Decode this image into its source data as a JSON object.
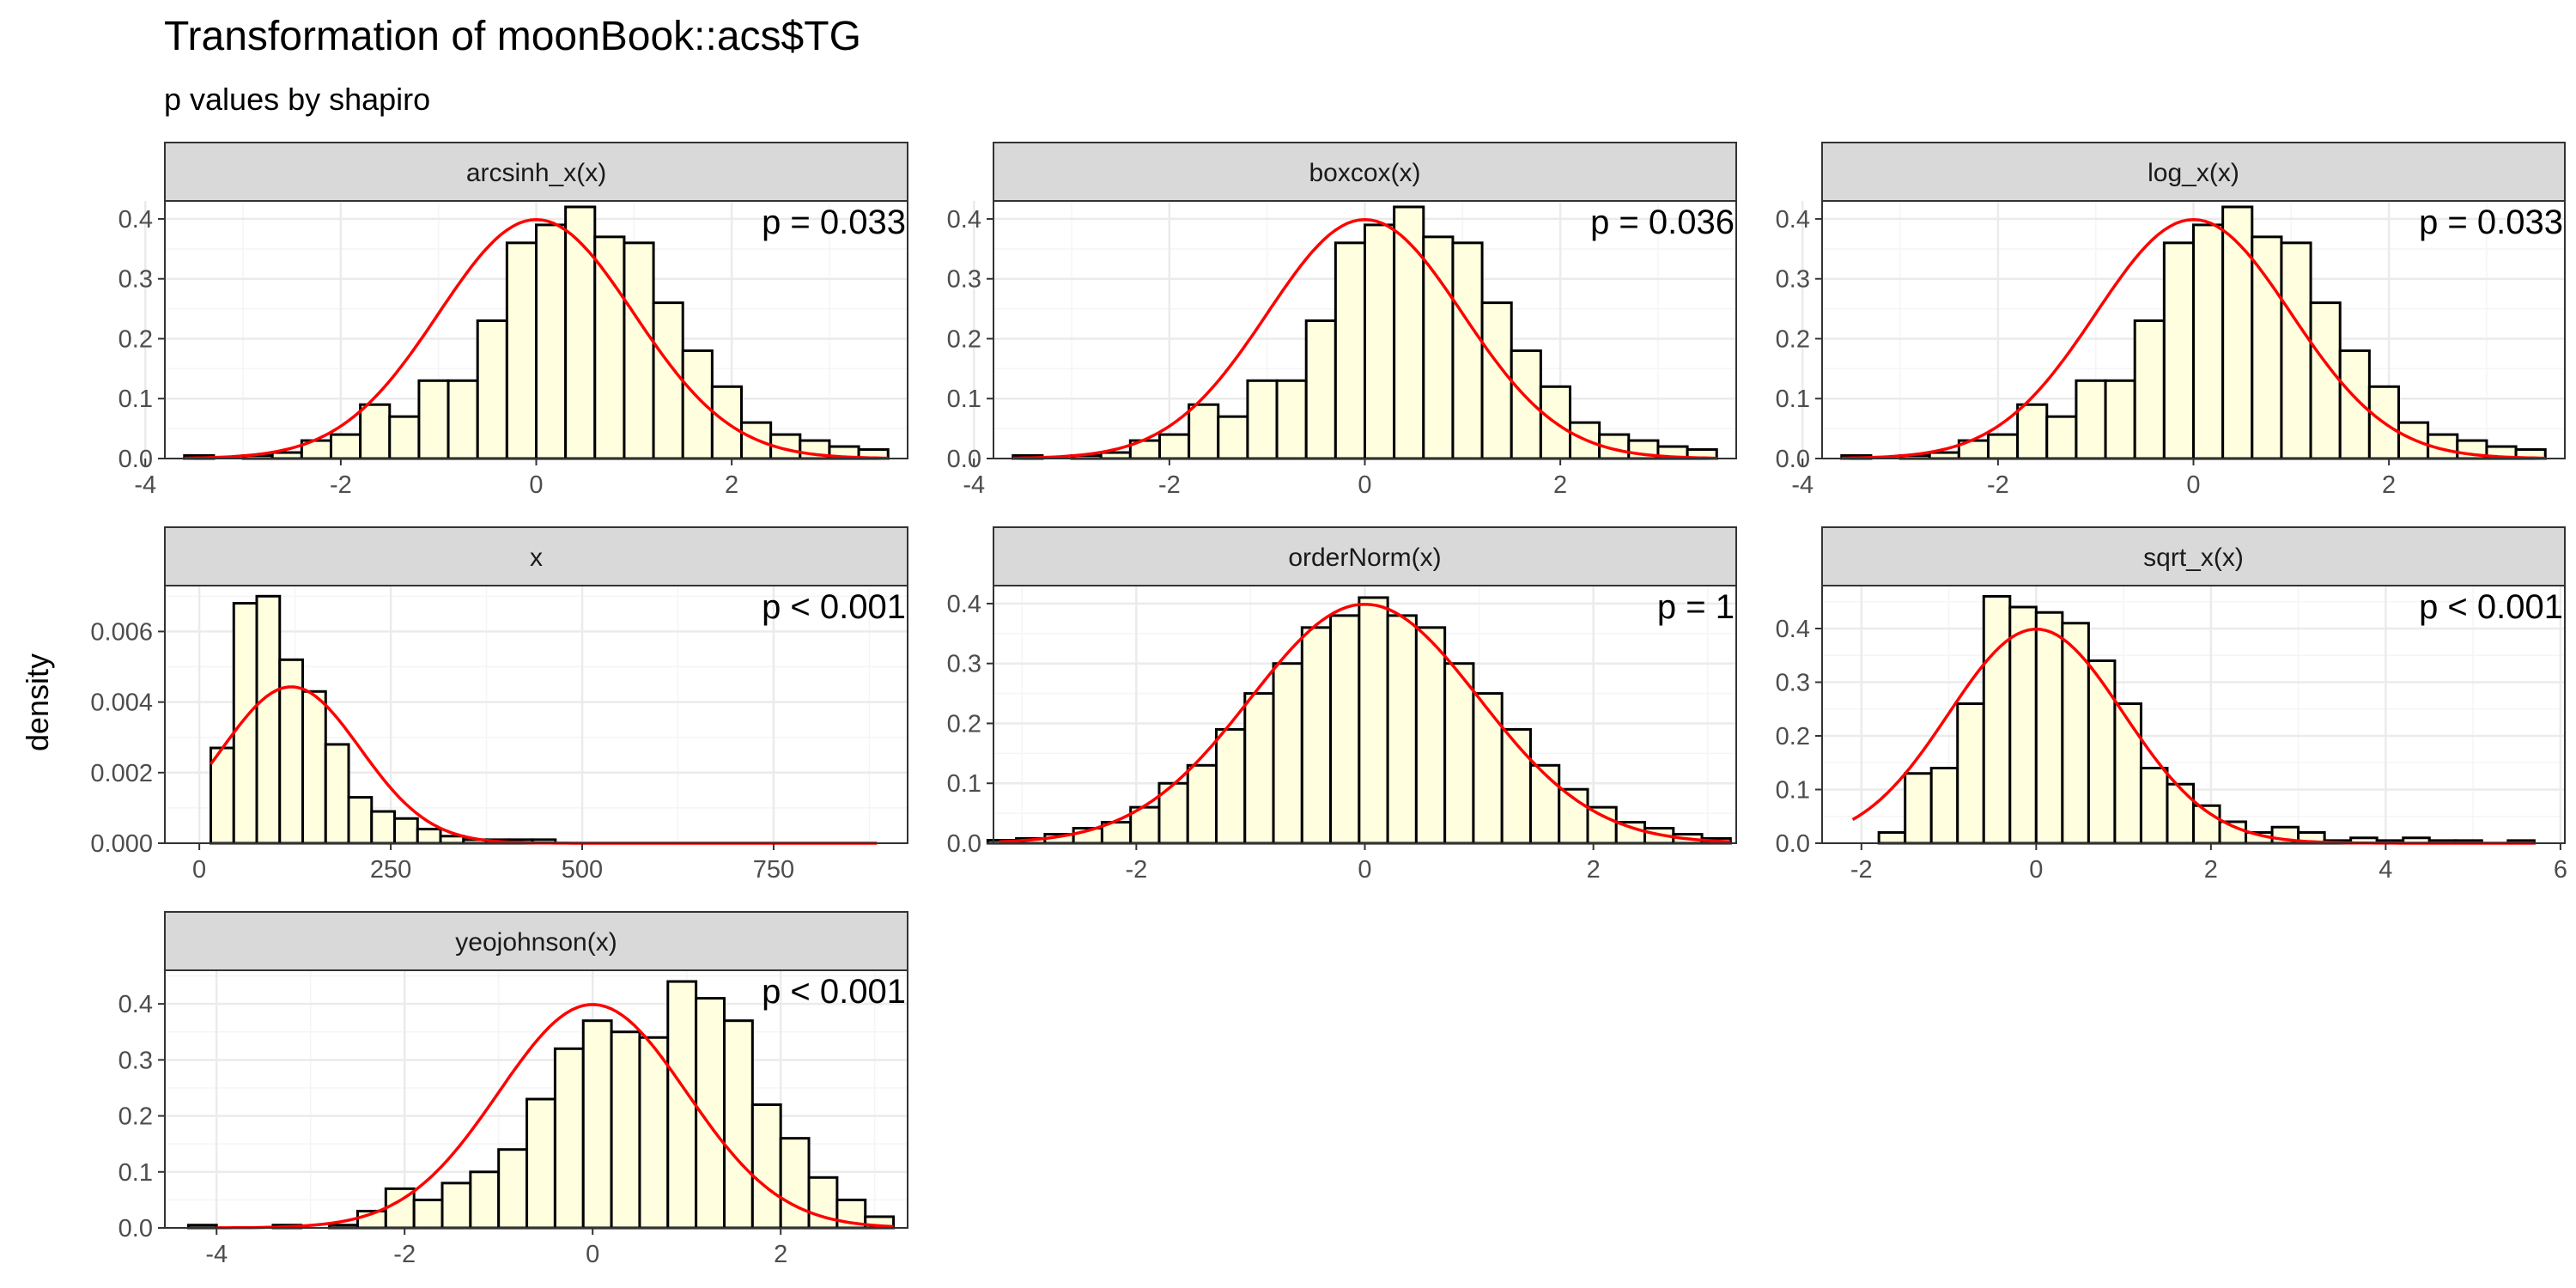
{
  "title": "Transformation of moonBook::acs$TG",
  "subtitle": "p values by shapiro",
  "ylabel": "density",
  "colors": {
    "bar_fill": "#ffffe0",
    "bar_stroke": "#000000",
    "curve": "#ff0000",
    "strip_fill": "#d9d9d9",
    "strip_border": "#333333",
    "grid_major": "#ebebeb",
    "grid_minor": "#f5f5f5",
    "panel_border": "#333333"
  },
  "chart_data": [
    {
      "type": "histogram",
      "facet": "arcsinh_x(x)",
      "annotation": "p = 0.033",
      "xlim": [
        -3.8,
        3.8
      ],
      "ylim": [
        0,
        0.43
      ],
      "x_ticks": [
        -4,
        -2,
        0,
        2
      ],
      "y_ticks": [
        0.0,
        0.1,
        0.2,
        0.3,
        0.4
      ],
      "bin_edges": [
        -3.6,
        -3.3,
        -3.0,
        -2.7,
        -2.4,
        -2.1,
        -1.8,
        -1.5,
        -1.2,
        -0.9,
        -0.6,
        -0.3,
        0.0,
        0.3,
        0.6,
        0.9,
        1.2,
        1.5,
        1.8,
        2.1,
        2.4,
        2.7,
        3.0,
        3.3,
        3.6
      ],
      "values": [
        0.005,
        0.0,
        0.005,
        0.01,
        0.03,
        0.04,
        0.09,
        0.07,
        0.13,
        0.13,
        0.23,
        0.36,
        0.39,
        0.42,
        0.37,
        0.36,
        0.26,
        0.18,
        0.12,
        0.06,
        0.04,
        0.03,
        0.02,
        0.015,
        0.01
      ],
      "curve": {
        "mean": 0,
        "sd": 1,
        "x_range": [
          -3.6,
          3.6
        ]
      }
    },
    {
      "type": "histogram",
      "facet": "boxcox(x)",
      "annotation": "p = 0.036",
      "xlim": [
        -3.8,
        3.8
      ],
      "ylim": [
        0,
        0.43
      ],
      "x_ticks": [
        -4,
        -2,
        0,
        2
      ],
      "y_ticks": [
        0.0,
        0.1,
        0.2,
        0.3,
        0.4
      ],
      "bin_edges": [
        -3.6,
        -3.3,
        -3.0,
        -2.7,
        -2.4,
        -2.1,
        -1.8,
        -1.5,
        -1.2,
        -0.9,
        -0.6,
        -0.3,
        0.0,
        0.3,
        0.6,
        0.9,
        1.2,
        1.5,
        1.8,
        2.1,
        2.4,
        2.7,
        3.0,
        3.3,
        3.6
      ],
      "values": [
        0.005,
        0.0,
        0.005,
        0.01,
        0.03,
        0.04,
        0.09,
        0.07,
        0.13,
        0.13,
        0.23,
        0.36,
        0.39,
        0.42,
        0.37,
        0.36,
        0.26,
        0.18,
        0.12,
        0.06,
        0.04,
        0.03,
        0.02,
        0.015,
        0.01
      ],
      "curve": {
        "mean": 0,
        "sd": 1,
        "x_range": [
          -3.6,
          3.6
        ]
      }
    },
    {
      "type": "histogram",
      "facet": "log_x(x)",
      "annotation": "p = 0.033",
      "xlim": [
        -3.8,
        3.8
      ],
      "ylim": [
        0,
        0.43
      ],
      "x_ticks": [
        -4,
        -2,
        0,
        2
      ],
      "y_ticks": [
        0.0,
        0.1,
        0.2,
        0.3,
        0.4
      ],
      "bin_edges": [
        -3.6,
        -3.3,
        -3.0,
        -2.7,
        -2.4,
        -2.1,
        -1.8,
        -1.5,
        -1.2,
        -0.9,
        -0.6,
        -0.3,
        0.0,
        0.3,
        0.6,
        0.9,
        1.2,
        1.5,
        1.8,
        2.1,
        2.4,
        2.7,
        3.0,
        3.3,
        3.6
      ],
      "values": [
        0.005,
        0.0,
        0.005,
        0.01,
        0.03,
        0.04,
        0.09,
        0.07,
        0.13,
        0.13,
        0.23,
        0.36,
        0.39,
        0.42,
        0.37,
        0.36,
        0.26,
        0.18,
        0.12,
        0.06,
        0.04,
        0.03,
        0.02,
        0.015,
        0.01
      ],
      "curve": {
        "mean": 0,
        "sd": 1,
        "x_range": [
          -3.6,
          3.6
        ]
      }
    },
    {
      "type": "histogram",
      "facet": "x",
      "annotation": "p < 0.001",
      "xlim": [
        -45,
        925
      ],
      "ylim": [
        0,
        0.0073
      ],
      "x_ticks": [
        0,
        250,
        500,
        750
      ],
      "y_ticks": [
        0.0,
        0.002,
        0.004,
        0.006
      ],
      "y_tick_labels": [
        "0.000",
        "0.002",
        "0.004",
        "0.006"
      ],
      "bin_edges": [
        -15,
        15,
        45,
        75,
        105,
        135,
        165,
        195,
        225,
        255,
        285,
        315,
        345,
        375,
        405,
        435,
        465,
        495,
        525,
        555,
        585,
        615,
        645,
        675,
        705,
        735,
        765,
        795,
        825,
        855,
        885
      ],
      "values": [
        0.0,
        0.0027,
        0.0068,
        0.007,
        0.0052,
        0.0043,
        0.0028,
        0.0013,
        0.0009,
        0.0007,
        0.0004,
        0.0002,
        0.0001,
        0.0001,
        0.0001,
        0.0001,
        0.0,
        0.0,
        0.0,
        0.0,
        0.0,
        0.0,
        0.0,
        0.0,
        0.0,
        0.0,
        0.0,
        0.0,
        0.0,
        0.0
      ],
      "curve": {
        "mean": 120,
        "sd": 90,
        "x_range": [
          15,
          885
        ]
      }
    },
    {
      "type": "histogram",
      "facet": "orderNorm(x)",
      "annotation": "p = 1",
      "xlim": [
        -3.25,
        3.25
      ],
      "ylim": [
        0,
        0.43
      ],
      "x_ticks": [
        -2,
        0,
        2
      ],
      "y_ticks": [
        0.0,
        0.1,
        0.2,
        0.3,
        0.4
      ],
      "bin_edges": [
        -3.3,
        -3.05,
        -2.8,
        -2.55,
        -2.3,
        -2.05,
        -1.8,
        -1.55,
        -1.3,
        -1.05,
        -0.8,
        -0.55,
        -0.3,
        -0.05,
        0.2,
        0.45,
        0.7,
        0.95,
        1.2,
        1.45,
        1.7,
        1.95,
        2.2,
        2.45,
        2.7,
        2.95,
        3.2
      ],
      "values": [
        0.005,
        0.008,
        0.015,
        0.025,
        0.035,
        0.06,
        0.1,
        0.13,
        0.19,
        0.25,
        0.3,
        0.36,
        0.38,
        0.41,
        0.38,
        0.36,
        0.3,
        0.25,
        0.19,
        0.13,
        0.09,
        0.06,
        0.035,
        0.025,
        0.015,
        0.008
      ],
      "curve": {
        "mean": 0,
        "sd": 1,
        "x_range": [
          -3.2,
          3.2
        ]
      }
    },
    {
      "type": "histogram",
      "facet": "sqrt_x(x)",
      "annotation": "p < 0.001",
      "xlim": [
        -2.45,
        6.05
      ],
      "ylim": [
        0,
        0.48
      ],
      "x_ticks": [
        -2,
        0,
        2,
        4,
        6
      ],
      "y_ticks": [
        0.0,
        0.1,
        0.2,
        0.3,
        0.4
      ],
      "bin_edges": [
        -2.1,
        -1.8,
        -1.5,
        -1.2,
        -0.9,
        -0.6,
        -0.3,
        0.0,
        0.3,
        0.6,
        0.9,
        1.2,
        1.5,
        1.8,
        2.1,
        2.4,
        2.7,
        3.0,
        3.3,
        3.6,
        3.9,
        4.2,
        4.5,
        4.8,
        5.1,
        5.4,
        5.7
      ],
      "values": [
        0.0,
        0.02,
        0.13,
        0.14,
        0.26,
        0.46,
        0.44,
        0.43,
        0.41,
        0.34,
        0.26,
        0.14,
        0.11,
        0.07,
        0.04,
        0.02,
        0.03,
        0.02,
        0.005,
        0.01,
        0.005,
        0.01,
        0.005,
        0.005,
        0.0,
        0.005
      ],
      "curve": {
        "mean": 0,
        "sd": 1,
        "x_range": [
          -2.1,
          5.7
        ]
      }
    },
    {
      "type": "histogram",
      "facet": "yeojohnson(x)",
      "annotation": "p < 0.001",
      "xlim": [
        -4.55,
        3.35
      ],
      "ylim": [
        0,
        0.46
      ],
      "x_ticks": [
        -4,
        -2,
        0,
        2
      ],
      "y_ticks": [
        0.0,
        0.1,
        0.2,
        0.3,
        0.4
      ],
      "bin_edges": [
        -4.3,
        -4.0,
        -3.7,
        -3.4,
        -3.1,
        -2.8,
        -2.5,
        -2.2,
        -1.9,
        -1.6,
        -1.3,
        -1.0,
        -0.7,
        -0.4,
        -0.1,
        0.2,
        0.5,
        0.8,
        1.1,
        1.4,
        1.7,
        2.0,
        2.3,
        2.6,
        2.9,
        3.2
      ],
      "values": [
        0.005,
        0.0,
        0.0,
        0.005,
        0.0,
        0.005,
        0.03,
        0.07,
        0.05,
        0.08,
        0.1,
        0.14,
        0.23,
        0.32,
        0.37,
        0.35,
        0.34,
        0.44,
        0.41,
        0.37,
        0.22,
        0.16,
        0.09,
        0.05,
        0.02,
        0.01
      ],
      "curve": {
        "mean": 0,
        "sd": 1,
        "x_range": [
          -4.0,
          3.2
        ]
      }
    }
  ]
}
